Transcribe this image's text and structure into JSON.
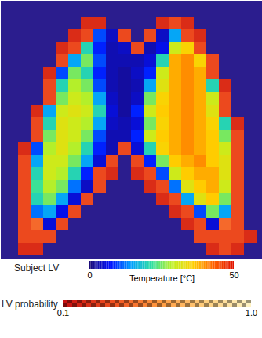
{
  "chart_data": {
    "type": "heatmap",
    "tick_labels": false,
    "colorbars": [
      {
        "name": "Subject LV",
        "label": "Temperature [°C]",
        "range": [
          0,
          50
        ],
        "ticks": [
          0,
          50
        ]
      },
      {
        "name": "LV probability",
        "range": [
          0.1,
          1
        ],
        "ticks": [
          0.1,
          {
            "value": 1,
            "label": "1.0"
          }
        ]
      }
    ],
    "temperature": [
      [
        null,
        null,
        null,
        null,
        null,
        null,
        null,
        null,
        null,
        null,
        null,
        null,
        null,
        null,
        null,
        null,
        null,
        null,
        null,
        null
      ],
      [
        null,
        null,
        null,
        null,
        null,
        null,
        null,
        null,
        null,
        null,
        null,
        null,
        null,
        null,
        null,
        null,
        null,
        null,
        null,
        null
      ],
      [
        null,
        null,
        null,
        null,
        null,
        null,
        null,
        10,
        4,
        null,
        null,
        null,
        4,
        15,
        null,
        null,
        null,
        null,
        null,
        null
      ],
      [
        null,
        null,
        null,
        null,
        null,
        null,
        20,
        8,
        3,
        4,
        null,
        3,
        6,
        30,
        35,
        null,
        null,
        null,
        null,
        null
      ],
      [
        null,
        null,
        null,
        null,
        null,
        15,
        25,
        10,
        3,
        3,
        3,
        5,
        20,
        38,
        40,
        35,
        null,
        null,
        null,
        null
      ],
      [
        null,
        null,
        null,
        null,
        10,
        25,
        20,
        8,
        3,
        2,
        4,
        8,
        30,
        38,
        40,
        38,
        null,
        null,
        null,
        null
      ],
      [
        null,
        null,
        null,
        null,
        20,
        28,
        25,
        10,
        3,
        2,
        3,
        15,
        32,
        38,
        40,
        38,
        20,
        null,
        null,
        null
      ],
      [
        null,
        null,
        null,
        null,
        25,
        30,
        28,
        15,
        4,
        2,
        4,
        25,
        35,
        38,
        40,
        38,
        30,
        null,
        null,
        null
      ],
      [
        null,
        null,
        null,
        15,
        30,
        32,
        30,
        20,
        5,
        2,
        8,
        30,
        36,
        38,
        40,
        38,
        32,
        null,
        null,
        null
      ],
      [
        null,
        null,
        null,
        20,
        32,
        30,
        28,
        15,
        4,
        3,
        5,
        25,
        35,
        38,
        40,
        38,
        35,
        20,
        null,
        null
      ],
      [
        null,
        null,
        null,
        25,
        32,
        30,
        25,
        10,
        3,
        3,
        8,
        30,
        36,
        38,
        40,
        38,
        36,
        25,
        null,
        null
      ],
      [
        null,
        null,
        10,
        28,
        32,
        28,
        20,
        8,
        3,
        null,
        5,
        20,
        35,
        38,
        40,
        38,
        36,
        30,
        null,
        null
      ],
      [
        null,
        null,
        15,
        30,
        30,
        25,
        15,
        5,
        null,
        null,
        null,
        8,
        25,
        36,
        38,
        40,
        36,
        32,
        null,
        null
      ],
      [
        null,
        null,
        20,
        30,
        28,
        20,
        8,
        null,
        null,
        null,
        null,
        null,
        10,
        30,
        36,
        38,
        38,
        32,
        null,
        null
      ],
      [
        null,
        null,
        22,
        28,
        25,
        12,
        4,
        null,
        null,
        null,
        null,
        null,
        null,
        12,
        32,
        36,
        38,
        30,
        null,
        null
      ],
      [
        null,
        null,
        20,
        25,
        15,
        5,
        null,
        null,
        null,
        null,
        null,
        null,
        null,
        null,
        15,
        32,
        36,
        25,
        null,
        null
      ],
      [
        null,
        null,
        12,
        15,
        6,
        null,
        null,
        null,
        null,
        null,
        null,
        null,
        null,
        null,
        null,
        10,
        25,
        15,
        null,
        null
      ],
      [
        null,
        null,
        null,
        5,
        null,
        null,
        null,
        null,
        null,
        null,
        null,
        null,
        null,
        null,
        null,
        null,
        5,
        null,
        null,
        null
      ],
      [
        null,
        null,
        null,
        null,
        null,
        null,
        null,
        null,
        null,
        null,
        null,
        null,
        null,
        null,
        null,
        null,
        null,
        null,
        null,
        null
      ],
      [
        null,
        null,
        null,
        null,
        null,
        null,
        null,
        null,
        null,
        null,
        null,
        null,
        null,
        null,
        null,
        null,
        null,
        null,
        null,
        null
      ]
    ],
    "probability": [
      [
        null,
        null,
        null,
        null,
        null,
        null,
        null,
        null,
        null,
        null,
        null,
        null,
        null,
        null,
        null,
        null,
        null,
        null,
        null,
        null
      ],
      [
        null,
        null,
        null,
        null,
        null,
        null,
        0.2,
        0.2,
        null,
        null,
        null,
        null,
        0.2,
        0.3,
        0.2,
        null,
        null,
        null,
        null,
        null
      ],
      [
        null,
        null,
        null,
        null,
        null,
        0.2,
        0.3,
        null,
        null,
        0.3,
        null,
        0.3,
        null,
        null,
        0.3,
        0.2,
        null,
        null,
        null,
        null
      ],
      [
        null,
        null,
        null,
        null,
        0.2,
        0.3,
        null,
        null,
        null,
        null,
        0.3,
        null,
        null,
        null,
        null,
        0.3,
        null,
        null,
        null,
        null
      ],
      [
        null,
        null,
        null,
        null,
        0.3,
        null,
        null,
        null,
        null,
        null,
        null,
        null,
        null,
        null,
        null,
        null,
        0.3,
        null,
        null,
        null
      ],
      [
        null,
        null,
        null,
        0.2,
        null,
        null,
        null,
        null,
        null,
        null,
        null,
        null,
        null,
        null,
        null,
        null,
        0.3,
        null,
        null,
        null
      ],
      [
        null,
        null,
        null,
        0.3,
        null,
        null,
        null,
        null,
        null,
        null,
        null,
        null,
        null,
        null,
        null,
        null,
        null,
        0.2,
        null,
        null
      ],
      [
        null,
        null,
        null,
        0.3,
        null,
        null,
        null,
        null,
        null,
        null,
        null,
        null,
        null,
        null,
        null,
        null,
        null,
        0.3,
        null,
        null
      ],
      [
        null,
        null,
        0.2,
        null,
        null,
        null,
        null,
        null,
        null,
        null,
        null,
        null,
        null,
        null,
        null,
        null,
        null,
        0.3,
        null,
        null
      ],
      [
        null,
        null,
        0.3,
        null,
        null,
        null,
        null,
        null,
        null,
        null,
        null,
        null,
        null,
        null,
        null,
        null,
        null,
        null,
        0.2,
        null
      ],
      [
        null,
        null,
        0.3,
        null,
        null,
        null,
        null,
        null,
        null,
        null,
        null,
        null,
        null,
        null,
        null,
        null,
        null,
        null,
        0.3,
        null
      ],
      [
        null,
        0.2,
        null,
        null,
        null,
        null,
        null,
        null,
        null,
        0.3,
        null,
        null,
        null,
        null,
        null,
        null,
        null,
        null,
        0.3,
        null
      ],
      [
        null,
        0.3,
        null,
        null,
        null,
        null,
        null,
        null,
        0.3,
        null,
        0.3,
        null,
        null,
        null,
        null,
        null,
        null,
        null,
        0.3,
        null
      ],
      [
        null,
        0.3,
        null,
        null,
        null,
        null,
        null,
        0.3,
        0.2,
        null,
        0.2,
        0.3,
        null,
        null,
        null,
        null,
        null,
        null,
        0.3,
        null
      ],
      [
        null,
        0.3,
        null,
        null,
        null,
        null,
        null,
        0.3,
        null,
        null,
        null,
        0.2,
        0.3,
        null,
        null,
        null,
        null,
        null,
        0.3,
        null
      ],
      [
        null,
        0.3,
        null,
        null,
        null,
        null,
        0.3,
        null,
        null,
        null,
        null,
        null,
        0.2,
        0.3,
        null,
        null,
        null,
        null,
        0.3,
        null
      ],
      [
        null,
        0.3,
        null,
        null,
        null,
        0.3,
        null,
        null,
        null,
        null,
        null,
        null,
        null,
        0.2,
        0.3,
        null,
        null,
        null,
        0.3,
        null
      ],
      [
        null,
        0.3,
        0.4,
        null,
        0.3,
        null,
        null,
        null,
        null,
        null,
        null,
        null,
        null,
        null,
        0.2,
        0.3,
        null,
        0.4,
        0.3,
        null
      ],
      [
        null,
        0.3,
        0.3,
        0.3,
        null,
        null,
        null,
        null,
        null,
        null,
        null,
        null,
        null,
        null,
        null,
        0.3,
        0.3,
        0.3,
        0.3,
        0.2
      ],
      [
        null,
        0.2,
        0.2,
        null,
        null,
        null,
        null,
        null,
        null,
        null,
        null,
        null,
        null,
        null,
        null,
        null,
        0.2,
        0.3,
        0.2,
        null
      ]
    ]
  }
}
